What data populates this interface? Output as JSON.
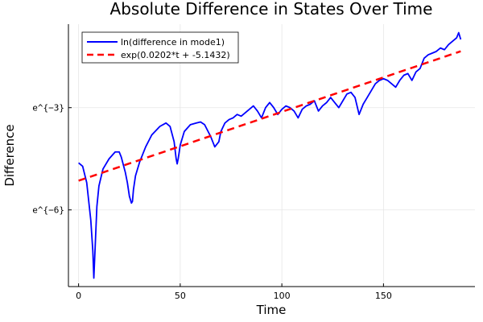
{
  "chart_data": {
    "type": "line",
    "title": "Absolute Difference in States Over Time",
    "xlabel": "Time",
    "ylabel": "Difference",
    "y_scale": "log",
    "xlim": [
      -5,
      195
    ],
    "ylim_ln": [
      -8.25,
      -0.55
    ],
    "x_ticks": [
      0,
      50,
      100,
      150
    ],
    "x_tick_labels": [
      "0",
      "50",
      "100",
      "150"
    ],
    "y_ticks_ln": [
      -3,
      -6
    ],
    "y_tick_labels": [
      "e^{−3}",
      "e^{−6}"
    ],
    "grid": true,
    "legend": {
      "placement": "top-left"
    },
    "colors": {
      "series1": "#0000ff",
      "series2": "#ff0000"
    },
    "series": [
      {
        "name": "ln(difference in mode1)",
        "style": "solid",
        "x": [
          0,
          2,
          4,
          6,
          7,
          7.5,
          8,
          9,
          10,
          12,
          15,
          18,
          20,
          21,
          23,
          24,
          25,
          26,
          26.5,
          27,
          28,
          30,
          33,
          36,
          40,
          43,
          45,
          47,
          48,
          48.5,
          49,
          50,
          52,
          55,
          58,
          60,
          62,
          65,
          67,
          69,
          70,
          72,
          74,
          76,
          78,
          80,
          82,
          84,
          86,
          88,
          90,
          92,
          94,
          96,
          98,
          100,
          102,
          104,
          106,
          108,
          110,
          112,
          114,
          116,
          118,
          120,
          122,
          124,
          126,
          128,
          130,
          132,
          134,
          136,
          138,
          140,
          142,
          144,
          146,
          148,
          150,
          152,
          154,
          156,
          158,
          160,
          162,
          164,
          166,
          168,
          170,
          172,
          174,
          176,
          178,
          180,
          182,
          184,
          186,
          187,
          188
        ],
        "y_ln": [
          -4.62,
          -4.72,
          -5.2,
          -6.3,
          -7.2,
          -8.0,
          -7.3,
          -5.9,
          -5.3,
          -4.8,
          -4.5,
          -4.3,
          -4.3,
          -4.45,
          -4.9,
          -5.2,
          -5.6,
          -5.8,
          -5.75,
          -5.4,
          -5.0,
          -4.6,
          -4.15,
          -3.8,
          -3.55,
          -3.45,
          -3.55,
          -4.0,
          -4.5,
          -4.65,
          -4.5,
          -4.1,
          -3.7,
          -3.5,
          -3.45,
          -3.42,
          -3.5,
          -3.85,
          -4.15,
          -4.0,
          -3.7,
          -3.45,
          -3.35,
          -3.3,
          -3.2,
          -3.25,
          -3.15,
          -3.05,
          -2.95,
          -3.1,
          -3.3,
          -3.0,
          -2.85,
          -3.0,
          -3.2,
          -3.05,
          -2.95,
          -3.0,
          -3.1,
          -3.3,
          -3.05,
          -2.95,
          -2.9,
          -2.8,
          -3.1,
          -2.95,
          -2.85,
          -2.7,
          -2.85,
          -3.0,
          -2.8,
          -2.6,
          -2.55,
          -2.7,
          -3.2,
          -2.9,
          -2.7,
          -2.5,
          -2.3,
          -2.2,
          -2.15,
          -2.2,
          -2.3,
          -2.4,
          -2.2,
          -2.05,
          -2.0,
          -2.2,
          -1.95,
          -1.85,
          -1.55,
          -1.45,
          -1.4,
          -1.35,
          -1.25,
          -1.3,
          -1.15,
          -1.05,
          -0.95,
          -0.8,
          -1.0
        ]
      },
      {
        "name": "exp(0.0202*t + -5.1432)",
        "style": "dashed",
        "x": [
          0,
          188
        ],
        "y_ln": [
          -5.1432,
          -1.3456
        ]
      }
    ]
  }
}
